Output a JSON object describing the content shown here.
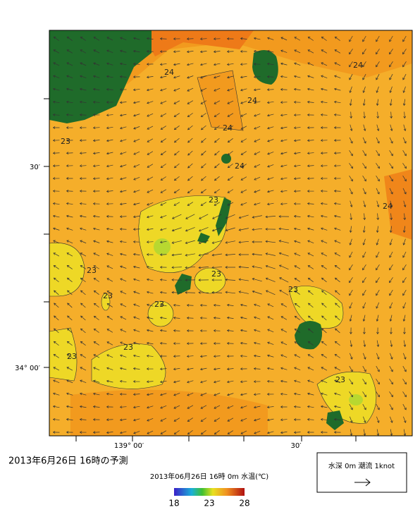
{
  "map": {
    "axis_labels": {
      "left": [
        "30′",
        "34° 00′"
      ],
      "bottom": [
        "139° 00′",
        "30′"
      ]
    },
    "contour_labels": [
      "24",
      "24",
      "24",
      "24",
      "24",
      "24",
      "23",
      "23",
      "23",
      "23",
      "23",
      "23",
      "23",
      "23",
      "23",
      "23"
    ],
    "caption": "2013年6月26日  16時の予測",
    "colorbar": {
      "title": "2013年06月26日 16時 0m 水温(℃)",
      "range": [
        18,
        28
      ],
      "ticks": [
        18,
        23,
        28
      ]
    },
    "legend": {
      "text": "水深 0m 潮流 1knot"
    }
  }
}
